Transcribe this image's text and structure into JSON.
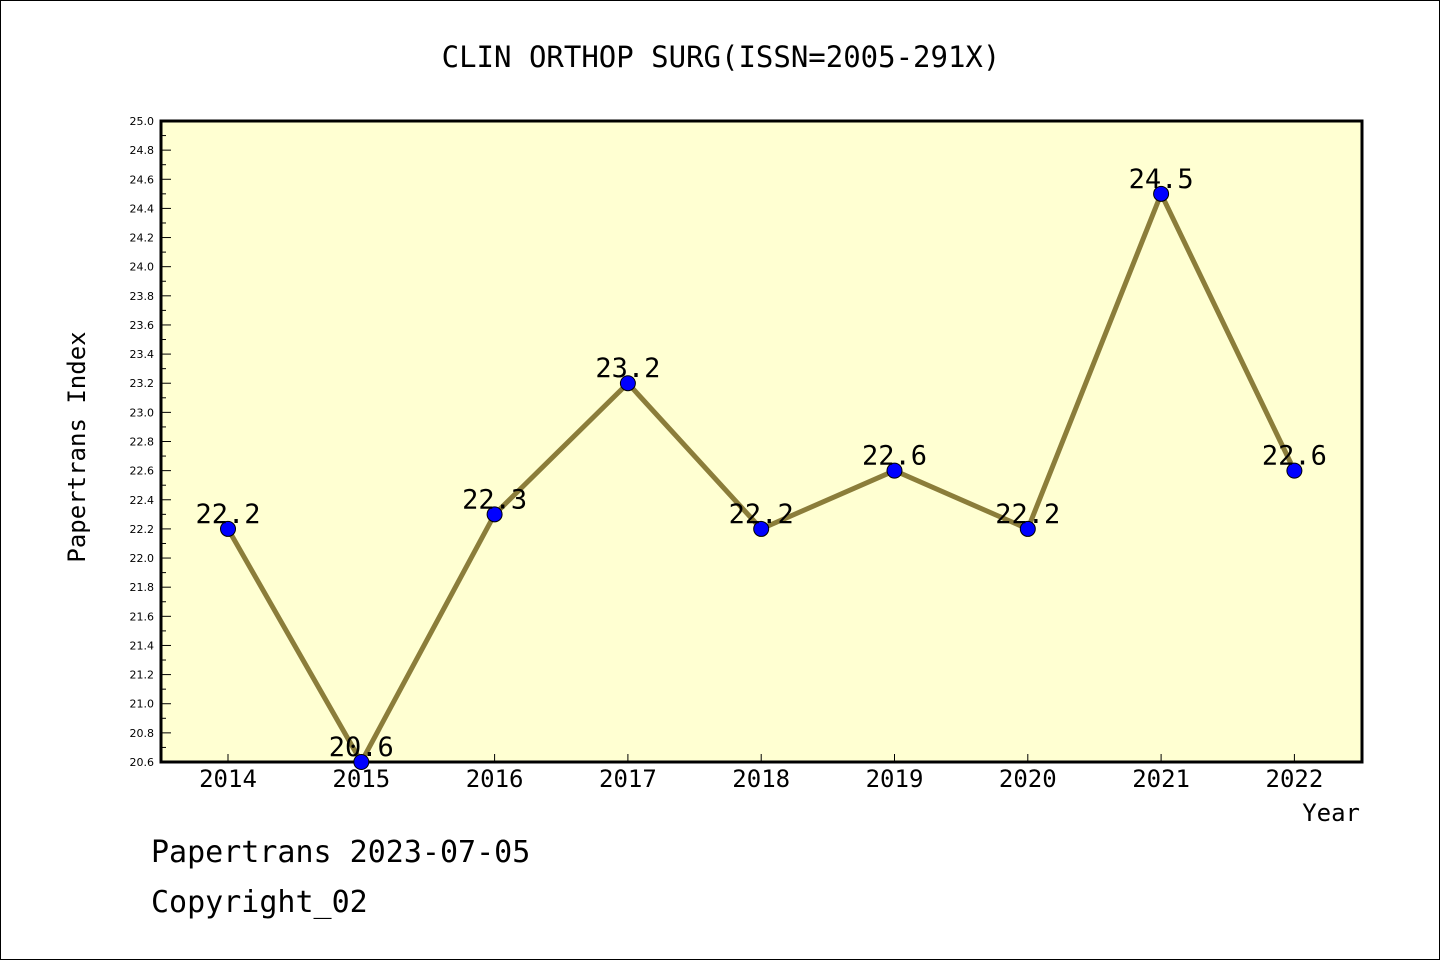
{
  "chart_data": {
    "type": "line",
    "title": "CLIN ORTHOP SURG(ISSN=2005-291X)",
    "xlabel": "Year",
    "ylabel": "Papertrans Index",
    "categories": [
      "2014",
      "2015",
      "2016",
      "2017",
      "2018",
      "2019",
      "2020",
      "2021",
      "2022"
    ],
    "values": [
      22.2,
      20.6,
      22.3,
      23.2,
      22.2,
      22.6,
      22.2,
      24.5,
      22.6
    ],
    "data_labels": [
      "22.2",
      "20.6",
      "22.3",
      "23.2",
      "22.2",
      "22.6",
      "22.2",
      "24.5",
      "22.6"
    ],
    "ylim": [
      20.6,
      25.0
    ],
    "yticks": [
      "20.6",
      "20.8",
      "21.0",
      "21.2",
      "21.4",
      "21.6",
      "21.8",
      "22.0",
      "22.2",
      "22.4",
      "22.6",
      "22.8",
      "23.0",
      "23.2",
      "23.4",
      "23.6",
      "23.8",
      "24.0",
      "24.2",
      "24.4",
      "24.6",
      "24.8",
      "25.0"
    ],
    "grid": false,
    "colors": {
      "plot_background": "#ffffd2",
      "line": "#8b7d3a",
      "marker": "#0000ff",
      "frame": "#000000"
    }
  },
  "footer": {
    "line1": "Papertrans 2023-07-05",
    "line2": "Copyright_02"
  }
}
